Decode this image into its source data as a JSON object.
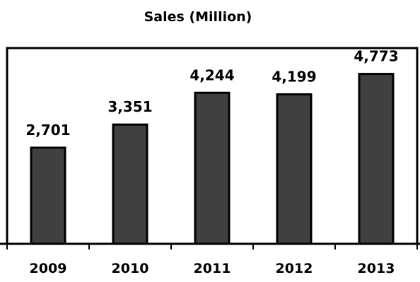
{
  "chart_data": {
    "type": "bar",
    "title": "Sales (Million)",
    "xlabel": "",
    "ylabel": "",
    "categories": [
      "2009",
      "2010",
      "2011",
      "2012",
      "2013"
    ],
    "values": [
      2701,
      3351,
      4244,
      4199,
      4773
    ],
    "data_labels": [
      "2,701",
      "3,351",
      "4,244",
      "4,199",
      "4,773"
    ],
    "ylim": [
      0,
      5500
    ],
    "grid": false,
    "legend": "none",
    "colors": {
      "bar_fill": "#404040",
      "bar_stroke": "#000000",
      "frame": "#000000",
      "background": "#ffffff"
    }
  }
}
